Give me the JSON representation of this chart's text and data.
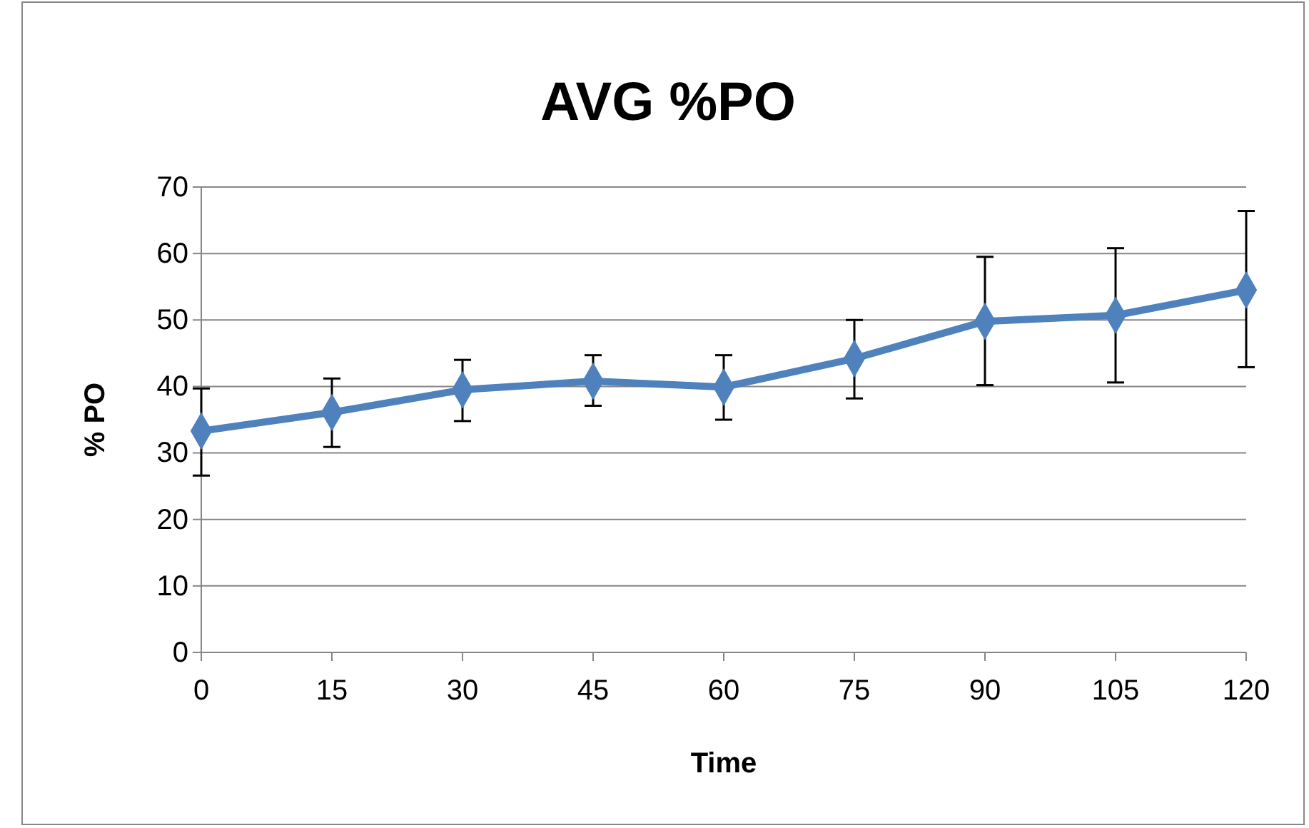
{
  "chart_data": {
    "type": "line",
    "title": "AVG %PO",
    "xlabel": "Time",
    "ylabel": "% PO",
    "x": [
      0,
      15,
      30,
      45,
      60,
      75,
      90,
      105,
      120
    ],
    "series": [
      {
        "color": "#4f81bd",
        "values": [
          33.3,
          36.1,
          39.5,
          40.8,
          39.9,
          44.2,
          49.8,
          50.7,
          54.5
        ],
        "errors": [
          [
            26.6,
            39.7
          ],
          [
            30.9,
            41.2
          ],
          [
            34.8,
            44.0
          ],
          [
            37.1,
            44.7
          ],
          [
            35.0,
            44.7
          ],
          [
            38.2,
            50.0
          ],
          [
            40.2,
            59.5
          ],
          [
            40.6,
            60.8
          ],
          [
            42.9,
            66.4
          ]
        ]
      }
    ],
    "xlim": [
      0,
      120
    ],
    "xticks": [
      0,
      15,
      30,
      45,
      60,
      75,
      90,
      105,
      120
    ],
    "ylim": [
      0,
      70
    ],
    "yticks": [
      0,
      10,
      20,
      30,
      40,
      50,
      60,
      70
    ],
    "grid": "y",
    "marker": "diamond",
    "line_style": "solid"
  }
}
